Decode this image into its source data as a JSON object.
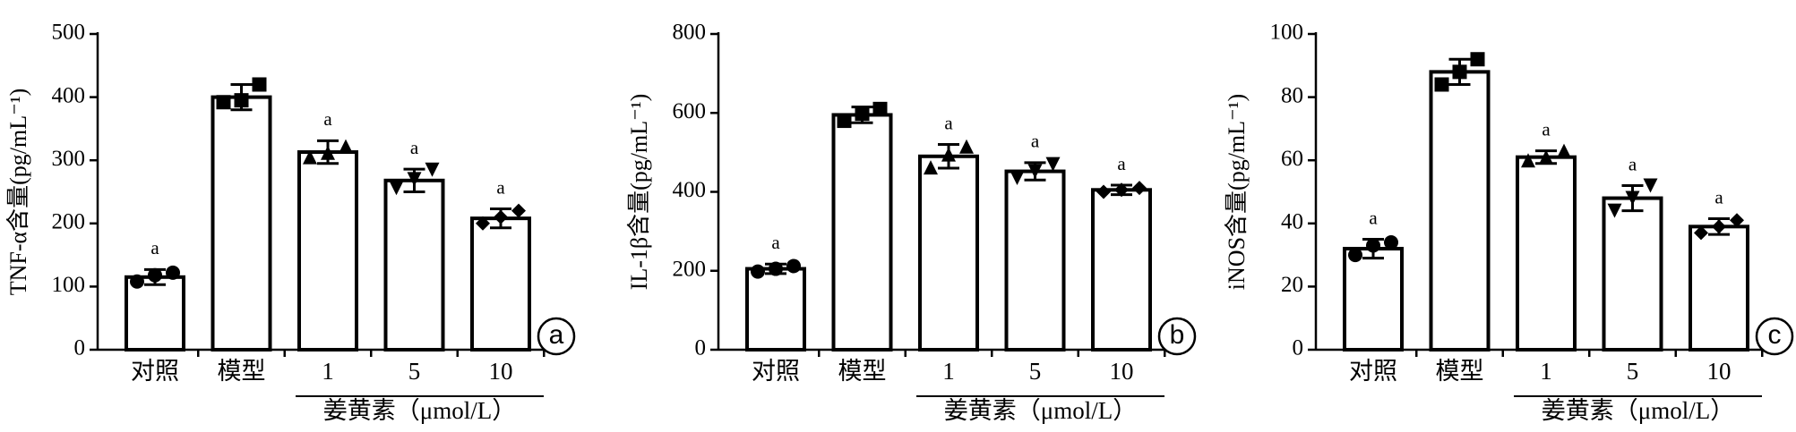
{
  "chart_data": [
    {
      "type": "bar",
      "panel": "a",
      "ylabel": "TNF-α含量(pg/mL⁻¹)",
      "group_label": "姜黄素（μmol/L）",
      "categories": [
        "对照",
        "模型",
        "1",
        "5",
        "10"
      ],
      "values": [
        115,
        400,
        313,
        268,
        208
      ],
      "errors": [
        12,
        20,
        18,
        18,
        15
      ],
      "points": [
        [
          108,
          118,
          122
        ],
        [
          392,
          395,
          420
        ],
        [
          305,
          312,
          322
        ],
        [
          256,
          270,
          285
        ],
        [
          200,
          210,
          220
        ]
      ],
      "annotations": [
        "a",
        null,
        "a",
        "a",
        "a"
      ],
      "ylim": [
        0,
        500
      ],
      "yticks": [
        0,
        100,
        200,
        300,
        400,
        500
      ],
      "color": "#ffffff"
    },
    {
      "type": "bar",
      "panel": "b",
      "ylabel": "IL-1β含量(pg/mL⁻¹)",
      "group_label": "姜黄素（μmol/L）",
      "categories": [
        "对照",
        "模型",
        "1",
        "5",
        "10"
      ],
      "values": [
        205,
        595,
        490,
        452,
        405
      ],
      "errors": [
        12,
        20,
        30,
        22,
        12
      ],
      "points": [
        [
          198,
          205,
          212
        ],
        [
          580,
          598,
          610
        ],
        [
          462,
          495,
          515
        ],
        [
          435,
          452,
          470
        ],
        [
          400,
          405,
          410
        ]
      ],
      "annotations": [
        "a",
        null,
        "a",
        "a",
        "a"
      ],
      "ylim": [
        0,
        800
      ],
      "yticks": [
        0,
        200,
        400,
        600,
        800
      ],
      "color": "#ffffff"
    },
    {
      "type": "bar",
      "panel": "c",
      "ylabel": "iNOS含量(pg/mL⁻¹)",
      "group_label": "姜黄素（μmol/L）",
      "categories": [
        "对照",
        "模型",
        "1",
        "5",
        "10"
      ],
      "values": [
        32,
        88,
        61,
        48,
        39
      ],
      "errors": [
        3,
        4,
        2,
        4,
        2.5
      ],
      "points": [
        [
          30,
          33,
          34
        ],
        [
          84,
          88,
          92
        ],
        [
          60,
          61,
          63
        ],
        [
          44,
          48,
          52
        ],
        [
          37,
          39,
          41
        ]
      ],
      "annotations": [
        "a",
        null,
        "a",
        "a",
        "a"
      ],
      "ylim": [
        0,
        100
      ],
      "yticks": [
        0,
        20,
        40,
        60,
        80,
        100
      ],
      "color": "#ffffff"
    }
  ]
}
